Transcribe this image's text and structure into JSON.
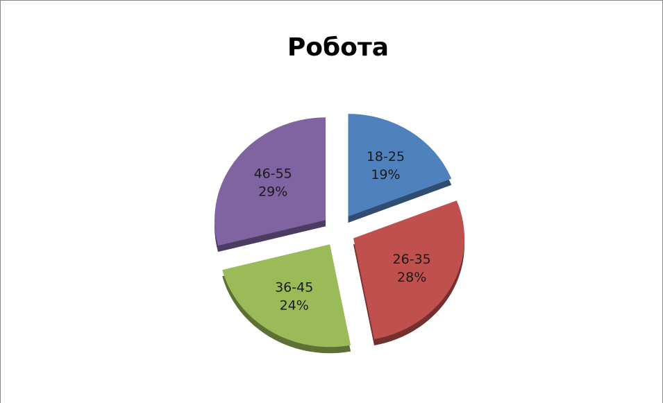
{
  "chart_data": {
    "type": "pie",
    "title": "Робота",
    "categories": [
      "18-25",
      "26-35",
      "36-45",
      "46-55"
    ],
    "values": [
      19,
      28,
      24,
      29
    ],
    "value_labels": [
      "19%",
      "28%",
      "24%",
      "29%"
    ],
    "colors": [
      "#4f81bd",
      "#c0504d",
      "#9bbb59",
      "#8064a2"
    ]
  }
}
